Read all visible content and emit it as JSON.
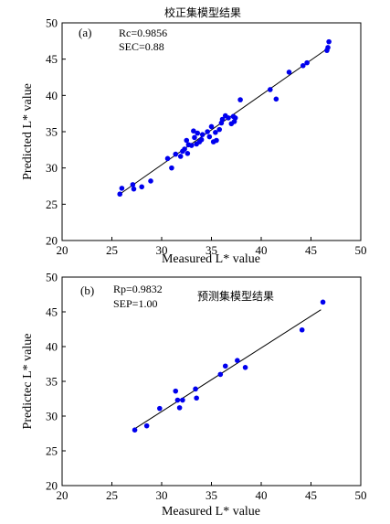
{
  "chart_data": [
    {
      "type": "scatter",
      "panel_label": "(a)",
      "title": "校正集模型结果",
      "stats": [
        "Rc=0.9856",
        "SEC=0.88"
      ],
      "xlabel": "Measured L* value",
      "ylabel": "Predicted L* value",
      "xlim": [
        20,
        50
      ],
      "ylim": [
        20,
        50
      ],
      "xticks": [
        20,
        25,
        30,
        35,
        40,
        45,
        50
      ],
      "yticks": [
        20,
        25,
        30,
        35,
        40,
        45,
        50
      ],
      "grid": false,
      "marker_color": "#0000ee",
      "line_color": "#000000",
      "fit_line": {
        "x": [
          25.8,
          46.7
        ],
        "y": [
          26.4,
          46.5
        ]
      },
      "points": [
        {
          "x": 25.8,
          "y": 26.4
        },
        {
          "x": 26.0,
          "y": 27.2
        },
        {
          "x": 27.1,
          "y": 27.7
        },
        {
          "x": 27.2,
          "y": 27.1
        },
        {
          "x": 28.0,
          "y": 27.4
        },
        {
          "x": 28.9,
          "y": 28.2
        },
        {
          "x": 30.6,
          "y": 31.3
        },
        {
          "x": 31.0,
          "y": 30.0
        },
        {
          "x": 31.4,
          "y": 31.9
        },
        {
          "x": 31.9,
          "y": 31.6
        },
        {
          "x": 32.1,
          "y": 32.3
        },
        {
          "x": 32.3,
          "y": 32.6
        },
        {
          "x": 32.5,
          "y": 33.8
        },
        {
          "x": 32.7,
          "y": 33.2
        },
        {
          "x": 32.6,
          "y": 32.0
        },
        {
          "x": 33.0,
          "y": 33.1
        },
        {
          "x": 33.2,
          "y": 35.1
        },
        {
          "x": 33.3,
          "y": 34.2
        },
        {
          "x": 33.5,
          "y": 33.3
        },
        {
          "x": 33.6,
          "y": 34.8
        },
        {
          "x": 33.8,
          "y": 33.6
        },
        {
          "x": 34.0,
          "y": 33.9
        },
        {
          "x": 34.1,
          "y": 34.6
        },
        {
          "x": 34.6,
          "y": 35.0
        },
        {
          "x": 34.8,
          "y": 34.3
        },
        {
          "x": 35.0,
          "y": 35.7
        },
        {
          "x": 35.2,
          "y": 33.6
        },
        {
          "x": 35.4,
          "y": 34.9
        },
        {
          "x": 35.5,
          "y": 33.8
        },
        {
          "x": 35.8,
          "y": 35.3
        },
        {
          "x": 36.0,
          "y": 36.2
        },
        {
          "x": 36.1,
          "y": 36.7
        },
        {
          "x": 36.4,
          "y": 37.2
        },
        {
          "x": 36.7,
          "y": 36.9
        },
        {
          "x": 37.0,
          "y": 36.1
        },
        {
          "x": 37.2,
          "y": 37.1
        },
        {
          "x": 37.3,
          "y": 36.4
        },
        {
          "x": 37.4,
          "y": 36.9
        },
        {
          "x": 37.9,
          "y": 39.4
        },
        {
          "x": 40.9,
          "y": 40.8
        },
        {
          "x": 41.5,
          "y": 39.5
        },
        {
          "x": 42.8,
          "y": 43.2
        },
        {
          "x": 44.2,
          "y": 44.1
        },
        {
          "x": 44.6,
          "y": 44.5
        },
        {
          "x": 46.6,
          "y": 46.2
        },
        {
          "x": 46.7,
          "y": 46.6
        },
        {
          "x": 46.8,
          "y": 47.4
        }
      ]
    },
    {
      "type": "scatter",
      "panel_label": "(b)",
      "title": "预测集模型结果",
      "stats": [
        "Rp=0.9832",
        "SEP=1.00"
      ],
      "xlabel": "Measured L* value",
      "ylabel": "Predictec L* value",
      "xlim": [
        20,
        50
      ],
      "ylim": [
        20,
        50
      ],
      "xticks": [
        20,
        25,
        30,
        35,
        40,
        45,
        50
      ],
      "yticks": [
        20,
        25,
        30,
        35,
        40,
        45,
        50
      ],
      "grid": false,
      "marker_color": "#0000ee",
      "line_color": "#000000",
      "fit_line": {
        "x": [
          27.1,
          46.0
        ],
        "y": [
          28.0,
          45.3
        ]
      },
      "points": [
        {
          "x": 27.3,
          "y": 28.0
        },
        {
          "x": 28.5,
          "y": 28.6
        },
        {
          "x": 29.8,
          "y": 31.1
        },
        {
          "x": 31.4,
          "y": 33.6
        },
        {
          "x": 31.6,
          "y": 32.3
        },
        {
          "x": 31.8,
          "y": 31.2
        },
        {
          "x": 32.1,
          "y": 32.3
        },
        {
          "x": 33.4,
          "y": 33.9
        },
        {
          "x": 33.5,
          "y": 32.6
        },
        {
          "x": 35.9,
          "y": 36.0
        },
        {
          "x": 36.4,
          "y": 37.2
        },
        {
          "x": 37.6,
          "y": 38.0
        },
        {
          "x": 38.4,
          "y": 37.0
        },
        {
          "x": 44.1,
          "y": 42.4
        },
        {
          "x": 46.2,
          "y": 46.4
        }
      ]
    }
  ]
}
